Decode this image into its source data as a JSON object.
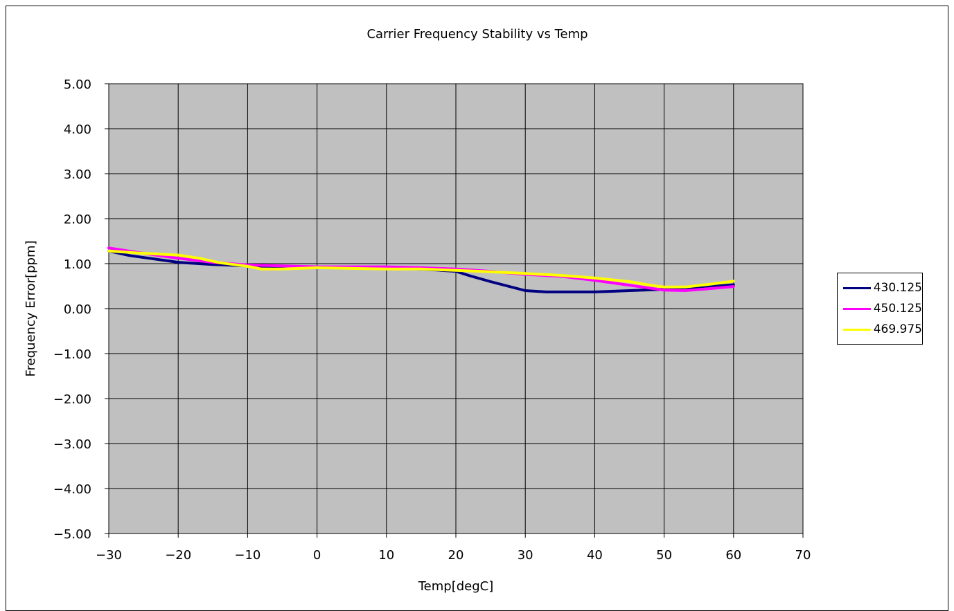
{
  "chart_data": {
    "type": "line",
    "title": "Carrier Frequency Stability vs Temp",
    "xlabel": "Temp[degC]",
    "ylabel": "Frequency Error[ppm]",
    "xlim": [
      -30,
      70
    ],
    "ylim": [
      -5,
      5
    ],
    "x_ticks": [
      -30,
      -20,
      -10,
      0,
      10,
      20,
      30,
      40,
      50,
      60,
      70
    ],
    "y_ticks": [
      5,
      4,
      3,
      2,
      1,
      0,
      -1,
      -2,
      -3,
      -4,
      -5
    ],
    "x_tick_labels": [
      "−30",
      "−20",
      "−10",
      "0",
      "10",
      "20",
      "30",
      "40",
      "50",
      "60",
      "70"
    ],
    "y_tick_labels": [
      "5.00",
      "4.00",
      "3.00",
      "2.00",
      "1.00",
      "0.00",
      "−1.00",
      "−2.00",
      "−3.00",
      "−4.00",
      "−5.00"
    ],
    "grid": true,
    "plot_background": "#c0c0c0",
    "legend_position": "right",
    "series": [
      {
        "name": "430.125",
        "color": "#000080",
        "points": [
          [
            -30,
            1.28
          ],
          [
            -27,
            1.18
          ],
          [
            -20,
            1.03
          ],
          [
            -15,
            0.98
          ],
          [
            -10,
            0.95
          ],
          [
            -7,
            0.94
          ],
          [
            0,
            0.92
          ],
          [
            10,
            0.9
          ],
          [
            15,
            0.88
          ],
          [
            20,
            0.83
          ],
          [
            22,
            0.73
          ],
          [
            25,
            0.6
          ],
          [
            30,
            0.4
          ],
          [
            33,
            0.37
          ],
          [
            40,
            0.37
          ],
          [
            45,
            0.4
          ],
          [
            50,
            0.43
          ],
          [
            55,
            0.47
          ],
          [
            60,
            0.53
          ]
        ]
      },
      {
        "name": "450.125",
        "color": "#ff00ff",
        "points": [
          [
            -30,
            1.35
          ],
          [
            -25,
            1.23
          ],
          [
            -20,
            1.12
          ],
          [
            -15,
            1.03
          ],
          [
            -10,
            0.97
          ],
          [
            -5,
            0.95
          ],
          [
            0,
            0.93
          ],
          [
            10,
            0.93
          ],
          [
            15,
            0.91
          ],
          [
            20,
            0.88
          ],
          [
            25,
            0.83
          ],
          [
            30,
            0.76
          ],
          [
            35,
            0.72
          ],
          [
            40,
            0.63
          ],
          [
            45,
            0.52
          ],
          [
            50,
            0.41
          ],
          [
            53,
            0.4
          ],
          [
            57,
            0.45
          ],
          [
            60,
            0.49
          ]
        ]
      },
      {
        "name": "469.975",
        "color": "#ffff00",
        "points": [
          [
            -30,
            1.28
          ],
          [
            -25,
            1.23
          ],
          [
            -20,
            1.19
          ],
          [
            -17,
            1.12
          ],
          [
            -14,
            1.02
          ],
          [
            -10,
            0.94
          ],
          [
            -8,
            0.88
          ],
          [
            -5,
            0.88
          ],
          [
            0,
            0.91
          ],
          [
            10,
            0.88
          ],
          [
            15,
            0.88
          ],
          [
            20,
            0.85
          ],
          [
            25,
            0.82
          ],
          [
            30,
            0.78
          ],
          [
            35,
            0.74
          ],
          [
            40,
            0.68
          ],
          [
            45,
            0.6
          ],
          [
            48,
            0.52
          ],
          [
            50,
            0.48
          ],
          [
            53,
            0.48
          ],
          [
            57,
            0.55
          ],
          [
            60,
            0.61
          ]
        ]
      }
    ]
  }
}
